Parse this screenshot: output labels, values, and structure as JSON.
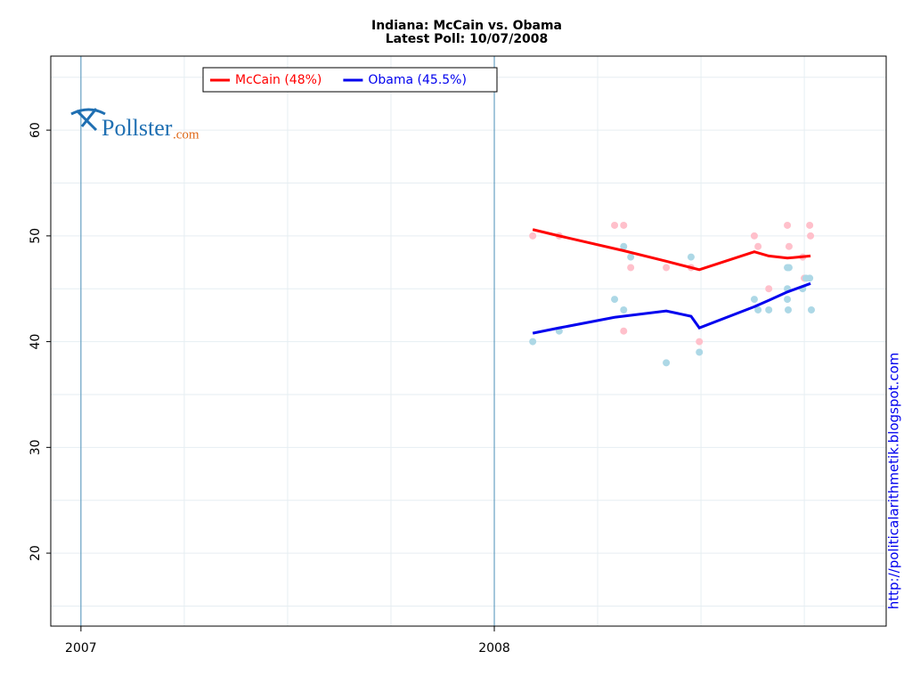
{
  "chart_data": {
    "type": "line",
    "title": "Indiana: McCain vs. Obama",
    "subtitle": "Latest Poll: 10/07/2008",
    "xlim": [
      2006.927,
      2008.948
    ],
    "xticks": [
      2007,
      2008
    ],
    "ylim": [
      13.1,
      67.0
    ],
    "yticks": [
      20,
      30,
      40,
      50,
      60
    ],
    "grid": true,
    "legend": "top-left",
    "series": [
      {
        "name": "McCain (48%)",
        "color": "#ff0000",
        "x": [
          2008.093,
          2008.157,
          2008.313,
          2008.416,
          2008.496,
          2008.629,
          2008.664,
          2008.709,
          2008.765
        ],
        "values": [
          50.6,
          50.0,
          48.6,
          47.6,
          46.8,
          48.5,
          48.1,
          47.9,
          48.1
        ]
      },
      {
        "name": "Obama (45.5%)",
        "color": "#0000ee",
        "x": [
          2008.093,
          2008.157,
          2008.291,
          2008.416,
          2008.476,
          2008.496,
          2008.629,
          2008.664,
          2008.709,
          2008.765
        ],
        "values": [
          40.8,
          41.3,
          42.3,
          42.9,
          42.4,
          41.3,
          43.3,
          43.9,
          44.7,
          45.5
        ]
      }
    ],
    "points": [
      {
        "color": "#ffc0cb",
        "x": [
          2008.093,
          2008.157,
          2008.291,
          2008.313,
          2008.313,
          2008.33,
          2008.416,
          2008.476,
          2008.496,
          2008.629,
          2008.638,
          2008.664,
          2008.709,
          2008.713,
          2008.746,
          2008.75,
          2008.763,
          2008.765
        ],
        "values": [
          50,
          50,
          51,
          51,
          41,
          47,
          47,
          47,
          40,
          50,
          49,
          45,
          51,
          49,
          48,
          46,
          51,
          50
        ]
      },
      {
        "color": "#add8e6",
        "x": [
          2008.093,
          2008.157,
          2008.291,
          2008.313,
          2008.313,
          2008.33,
          2008.416,
          2008.476,
          2008.496,
          2008.629,
          2008.638,
          2008.664,
          2008.709,
          2008.713,
          2008.709,
          2008.709,
          2008.711,
          2008.746,
          2008.754,
          2008.763,
          2008.767
        ],
        "values": [
          40,
          41,
          44,
          49,
          43,
          48,
          38,
          48,
          39,
          44,
          43,
          43,
          47,
          47,
          45,
          44,
          43,
          45,
          46,
          46,
          43
        ]
      }
    ],
    "logo": {
      "name": "Pollster",
      "suffix": ".com"
    },
    "source": "http://politicalarithmetik.blogspot.com"
  }
}
